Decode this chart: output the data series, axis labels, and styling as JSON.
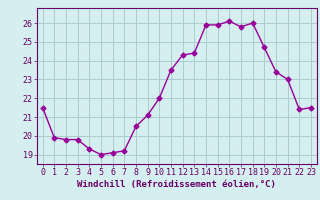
{
  "x": [
    0,
    1,
    2,
    3,
    4,
    5,
    6,
    7,
    8,
    9,
    10,
    11,
    12,
    13,
    14,
    15,
    16,
    17,
    18,
    19,
    20,
    21,
    22,
    23
  ],
  "y": [
    21.5,
    19.9,
    19.8,
    19.8,
    19.3,
    19.0,
    19.1,
    19.2,
    20.5,
    21.1,
    22.0,
    23.5,
    24.3,
    24.4,
    25.9,
    25.9,
    26.1,
    25.8,
    26.0,
    24.7,
    23.4,
    23.0,
    21.4,
    21.5
  ],
  "line_color": "#990099",
  "marker": "D",
  "markersize": 2.5,
  "linewidth": 1.0,
  "background_color": "#d5eef0",
  "grid_color": "#aacccc",
  "xlabel": "Windchill (Refroidissement éolien,°C)",
  "xlabel_fontsize": 6.5,
  "ylabel_ticks": [
    19,
    20,
    21,
    22,
    23,
    24,
    25,
    26
  ],
  "xtick_labels": [
    "0",
    "1",
    "2",
    "3",
    "4",
    "5",
    "6",
    "7",
    "8",
    "9",
    "10",
    "11",
    "12",
    "13",
    "14",
    "15",
    "16",
    "17",
    "18",
    "19",
    "20",
    "21",
    "22",
    "23"
  ],
  "ylim": [
    18.5,
    26.8
  ],
  "xlim": [
    -0.5,
    23.5
  ],
  "tick_fontsize": 6.0,
  "label_color": "#660066"
}
